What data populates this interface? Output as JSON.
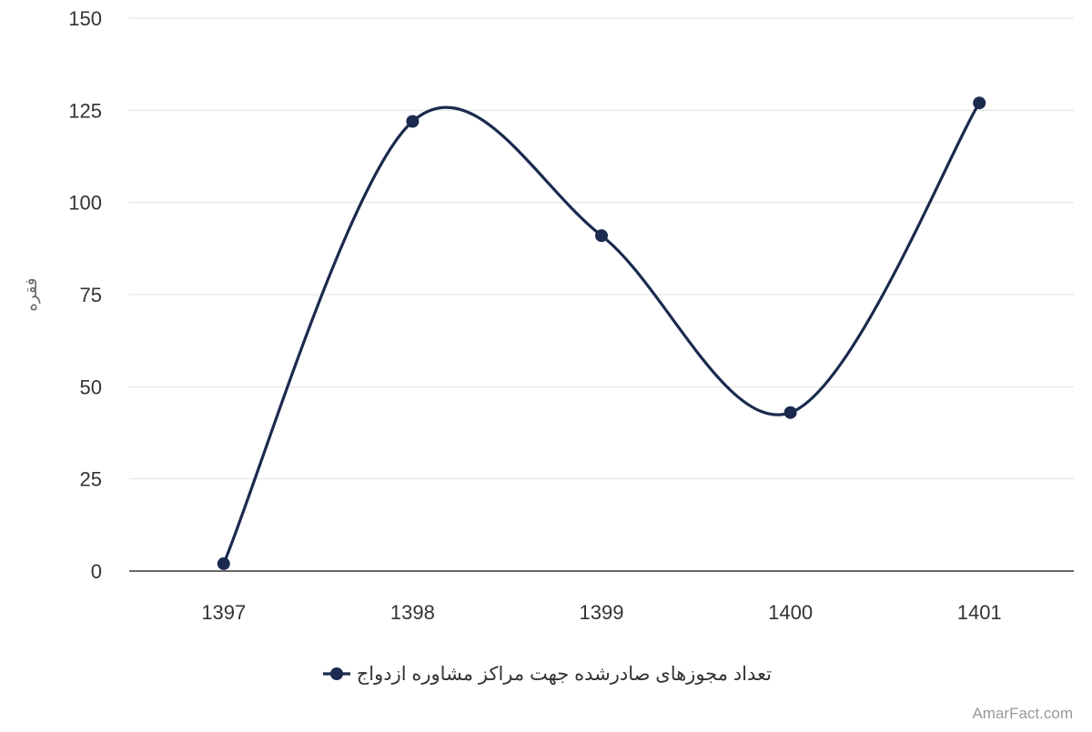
{
  "chart_data": {
    "type": "line",
    "categories": [
      "1397",
      "1398",
      "1399",
      "1400",
      "1401"
    ],
    "series": [
      {
        "name": "تعداد مجوزهای صادرشده جهت مراکز مشاوره ازدواج",
        "values": [
          2,
          122,
          91,
          43,
          127
        ],
        "color": "#1b2a4e"
      }
    ],
    "ylabel": "فقره",
    "ylim": [
      0,
      150
    ],
    "yticks": [
      0,
      25,
      50,
      75,
      100,
      125,
      150
    ],
    "grid": true,
    "smooth": true,
    "legend_position": "bottom-center"
  },
  "credit": "AmarFact.com"
}
